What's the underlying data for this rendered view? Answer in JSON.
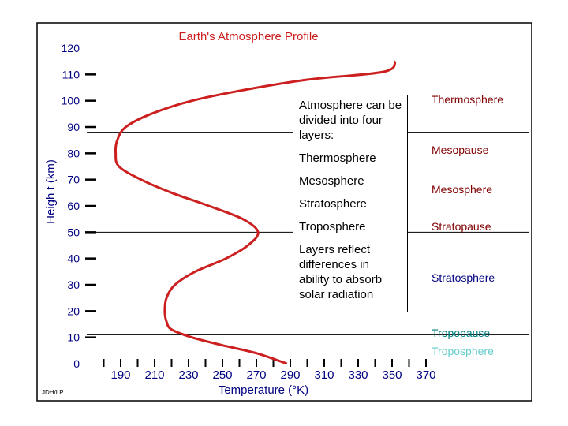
{
  "chart_data": {
    "type": "line",
    "title": "Earth's Atmosphere Profile",
    "xlabel": "Temperature (°K)",
    "ylabel": "Heigh t (km)",
    "xlim": [
      170,
      370
    ],
    "ylim": [
      0,
      120
    ],
    "x_ticks": [
      "190",
      "210",
      "230",
      "250",
      "270",
      "290",
      "310",
      "330",
      "350",
      "370"
    ],
    "y_ticks": [
      "0",
      "10",
      "20",
      "30",
      "40",
      "50",
      "60",
      "70",
      "80",
      "90",
      "100",
      "110",
      "120"
    ],
    "series": [
      {
        "x": [
          288,
          270,
          250,
          232,
          220,
          217,
          216,
          217,
          222,
          234,
          252,
          265,
          271,
          262,
          242,
          220,
          202,
          189,
          187,
          188,
          193,
          208,
          232,
          262,
          300,
          345,
          352
        ],
        "y": [
          0,
          4,
          7,
          10,
          13,
          16,
          20,
          25,
          30,
          35,
          40,
          45,
          50,
          55,
          60,
          65,
          70,
          75,
          80,
          85,
          90,
          95,
          100,
          104,
          108,
          111,
          115
        ]
      }
    ],
    "layer_labels": [
      {
        "text": "Thermosphere",
        "color": "#800000"
      },
      {
        "text": "Mesopause",
        "color": "#800000"
      },
      {
        "text": "Mesosphere",
        "color": "#800000"
      },
      {
        "text": "Stratopause",
        "color": "#800000"
      },
      {
        "text": "Stratosphere",
        "color": "#000080"
      },
      {
        "text": "Tropopause",
        "color": "#008080"
      },
      {
        "text": "Troposphere",
        "color": "#66cccc"
      }
    ],
    "boundary_lines_km": [
      88,
      50,
      11
    ],
    "credit": "JDH/LP",
    "colors": {
      "curve": "#cc1f1f",
      "title": "#cc1f1f",
      "axis_text": "#000080"
    }
  },
  "callout": {
    "intro": "Atmosphere can be divided into four layers:",
    "layers": [
      "Thermosphere",
      "Mesosphere",
      "Stratosphere",
      "Troposphere"
    ],
    "note": "Layers reflect differences in ability to absorb solar radiation"
  }
}
